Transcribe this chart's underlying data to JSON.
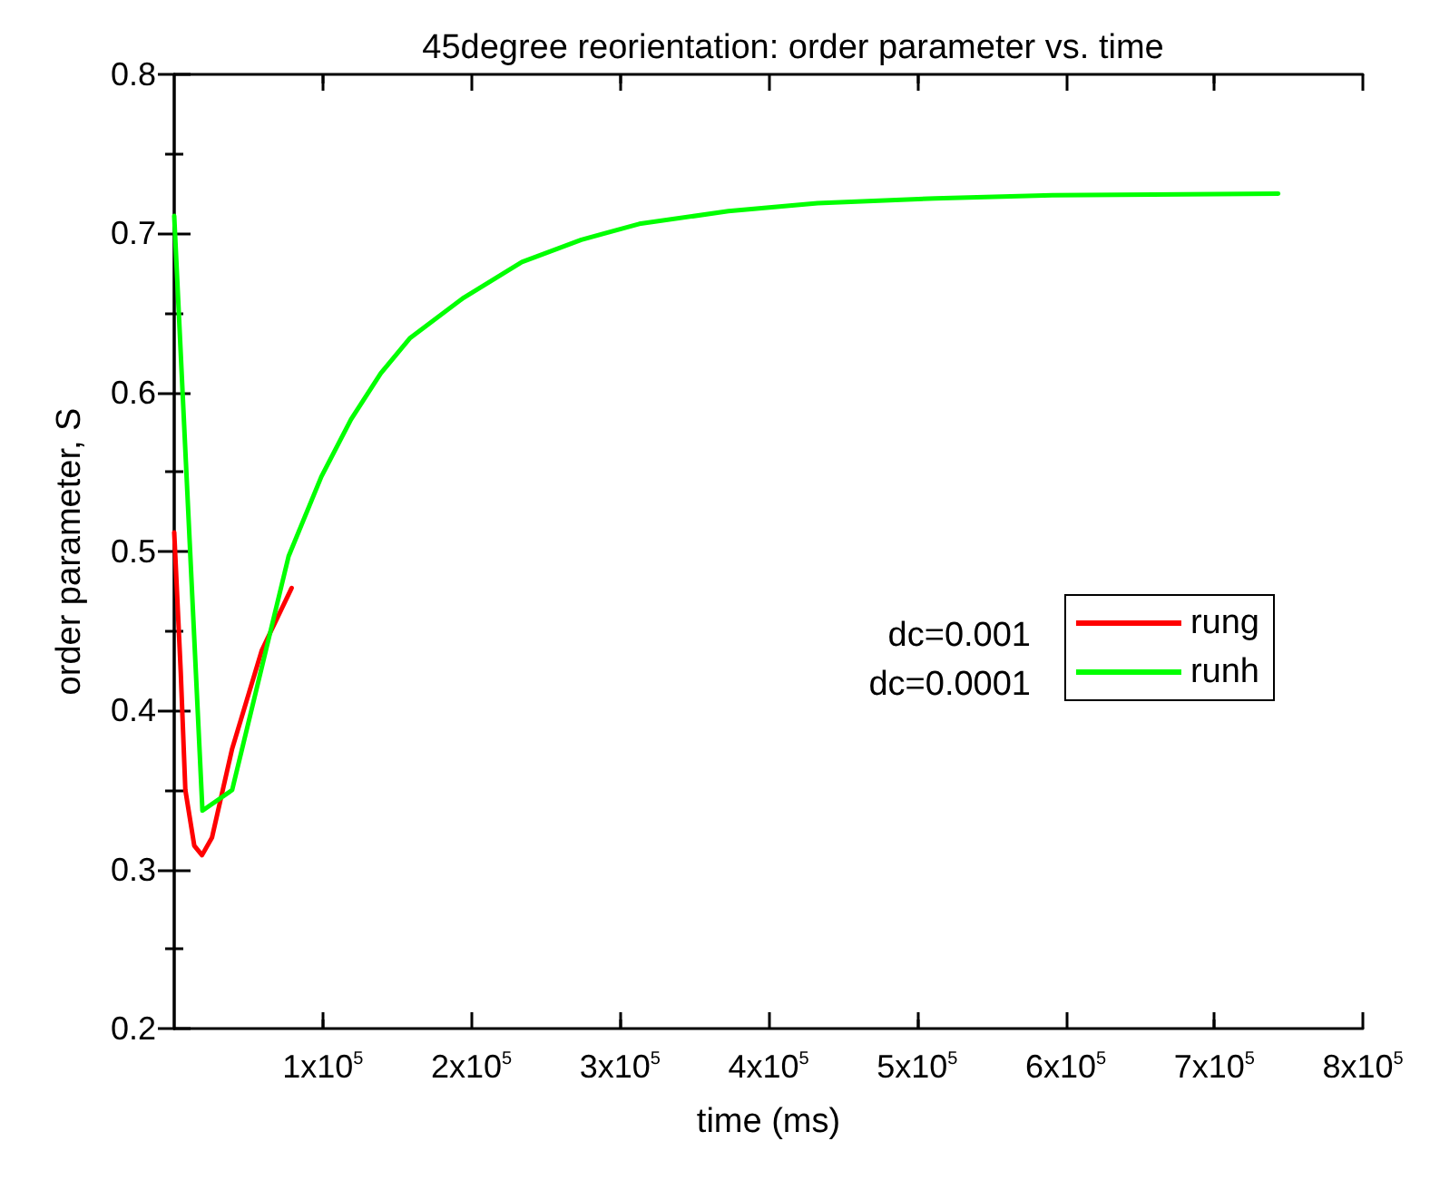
{
  "chart_data": {
    "type": "line",
    "title": "45degree reorientation: order parameter vs. time",
    "xlabel": "time (ms)",
    "ylabel": "order parameter, S",
    "xlim": [
      0,
      800000
    ],
    "ylim": [
      0.2,
      0.8
    ],
    "xticks": [
      {
        "value": 100000,
        "label": "1x10$^{5}$"
      },
      {
        "value": 200000,
        "label": "2x10$^{5}$"
      },
      {
        "value": 300000,
        "label": "3x10$^{5}$"
      },
      {
        "value": 400000,
        "label": "4x10$^{5}$"
      },
      {
        "value": 500000,
        "label": "5x10$^{5}$"
      },
      {
        "value": 600000,
        "label": "6x10$^{5}$"
      },
      {
        "value": 700000,
        "label": "7x10$^{5}$"
      },
      {
        "value": 800000,
        "label": "8x10$^{5}$"
      }
    ],
    "yticks": [
      0.2,
      0.3,
      0.4,
      0.5,
      0.6,
      0.7,
      0.8
    ],
    "grid": false,
    "legend": "right",
    "marker": "none",
    "line_style": "solid",
    "annotations": [
      "dc=0.001",
      "dc=0.0001"
    ],
    "series": [
      {
        "name": "rung",
        "color": "#ff0000",
        "x": [
          0,
          4400,
          7500,
          13500,
          18700,
          25400,
          39000,
          59000,
          79000
        ],
        "values": [
          0.512,
          0.424,
          0.35,
          0.315,
          0.309,
          0.32,
          0.376,
          0.438,
          0.477
        ]
      },
      {
        "name": "runh",
        "color": "#00ff00",
        "x": [
          0,
          19000,
          39000,
          77000,
          99000,
          119000,
          139000,
          158500,
          194000,
          234000,
          274000,
          313000,
          373000,
          433000,
          512000,
          591000,
          743000
        ],
        "values": [
          0.711,
          0.337,
          0.35,
          0.497,
          0.547,
          0.583,
          0.612,
          0.634,
          0.659,
          0.682,
          0.696,
          0.706,
          0.714,
          0.719,
          0.722,
          0.724,
          0.725
        ]
      }
    ]
  }
}
